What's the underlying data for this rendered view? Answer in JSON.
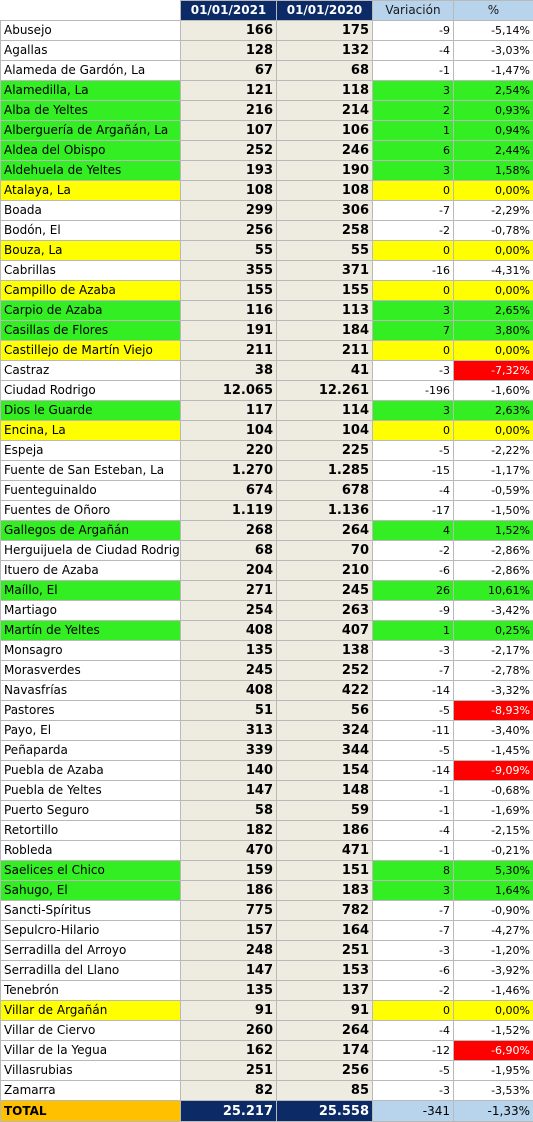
{
  "header": {
    "blank": "",
    "col1": "01/01/2021",
    "col2": "01/01/2020",
    "col3": "Variación",
    "col4": "%"
  },
  "colors": {
    "green": "#33ee22",
    "yellow": "#ffff00",
    "red": "#ff0000",
    "navy": "#0b2a66",
    "orange": "#ffc000",
    "light_blue": "#b8d4ec",
    "beige": "#eeece1"
  },
  "rows": [
    {
      "name": "Abusejo",
      "v2021": "166",
      "v2020": "175",
      "var": "-9",
      "pct": "-5,14%",
      "hl": ""
    },
    {
      "name": "Agallas",
      "v2021": "128",
      "v2020": "132",
      "var": "-4",
      "pct": "-3,03%",
      "hl": ""
    },
    {
      "name": "Alameda de Gardón, La",
      "v2021": "67",
      "v2020": "68",
      "var": "-1",
      "pct": "-1,47%",
      "hl": ""
    },
    {
      "name": "Alamedilla, La",
      "v2021": "121",
      "v2020": "118",
      "var": "3",
      "pct": "2,54%",
      "hl": "green"
    },
    {
      "name": "Alba de Yeltes",
      "v2021": "216",
      "v2020": "214",
      "var": "2",
      "pct": "0,93%",
      "hl": "green"
    },
    {
      "name": "Alberguería de Argañán, La",
      "v2021": "107",
      "v2020": "106",
      "var": "1",
      "pct": "0,94%",
      "hl": "green"
    },
    {
      "name": "Aldea del Obispo",
      "v2021": "252",
      "v2020": "246",
      "var": "6",
      "pct": "2,44%",
      "hl": "green"
    },
    {
      "name": "Aldehuela de Yeltes",
      "v2021": "193",
      "v2020": "190",
      "var": "3",
      "pct": "1,58%",
      "hl": "green"
    },
    {
      "name": "Atalaya, La",
      "v2021": "108",
      "v2020": "108",
      "var": "0",
      "pct": "0,00%",
      "hl": "yellow"
    },
    {
      "name": "Boada",
      "v2021": "299",
      "v2020": "306",
      "var": "-7",
      "pct": "-2,29%",
      "hl": ""
    },
    {
      "name": "Bodón, El",
      "v2021": "256",
      "v2020": "258",
      "var": "-2",
      "pct": "-0,78%",
      "hl": ""
    },
    {
      "name": "Bouza, La",
      "v2021": "55",
      "v2020": "55",
      "var": "0",
      "pct": "0,00%",
      "hl": "yellow"
    },
    {
      "name": "Cabrillas",
      "v2021": "355",
      "v2020": "371",
      "var": "-16",
      "pct": "-4,31%",
      "hl": ""
    },
    {
      "name": "Campillo de Azaba",
      "v2021": "155",
      "v2020": "155",
      "var": "0",
      "pct": "0,00%",
      "hl": "yellow"
    },
    {
      "name": "Carpio de Azaba",
      "v2021": "116",
      "v2020": "113",
      "var": "3",
      "pct": "2,65%",
      "hl": "green"
    },
    {
      "name": "Casillas de Flores",
      "v2021": "191",
      "v2020": "184",
      "var": "7",
      "pct": "3,80%",
      "hl": "green"
    },
    {
      "name": "Castillejo de Martín Viejo",
      "v2021": "211",
      "v2020": "211",
      "var": "0",
      "pct": "0,00%",
      "hl": "yellow"
    },
    {
      "name": "Castraz",
      "v2021": "38",
      "v2020": "41",
      "var": "-3",
      "pct": "-7,32%",
      "hl": "",
      "red": true
    },
    {
      "name": "Ciudad Rodrigo",
      "v2021": "12.065",
      "v2020": "12.261",
      "var": "-196",
      "pct": "-1,60%",
      "hl": ""
    },
    {
      "name": "Dios le Guarde",
      "v2021": "117",
      "v2020": "114",
      "var": "3",
      "pct": "2,63%",
      "hl": "green"
    },
    {
      "name": "Encina, La",
      "v2021": "104",
      "v2020": "104",
      "var": "0",
      "pct": "0,00%",
      "hl": "yellow"
    },
    {
      "name": "Espeja",
      "v2021": "220",
      "v2020": "225",
      "var": "-5",
      "pct": "-2,22%",
      "hl": ""
    },
    {
      "name": "Fuente de San Esteban, La",
      "v2021": "1.270",
      "v2020": "1.285",
      "var": "-15",
      "pct": "-1,17%",
      "hl": ""
    },
    {
      "name": "Fuenteguinaldo",
      "v2021": "674",
      "v2020": "678",
      "var": "-4",
      "pct": "-0,59%",
      "hl": ""
    },
    {
      "name": "Fuentes de Oñoro",
      "v2021": "1.119",
      "v2020": "1.136",
      "var": "-17",
      "pct": "-1,50%",
      "hl": ""
    },
    {
      "name": "Gallegos de Argañán",
      "v2021": "268",
      "v2020": "264",
      "var": "4",
      "pct": "1,52%",
      "hl": "green"
    },
    {
      "name": "Herguijuela de Ciudad Rodrigo",
      "v2021": "68",
      "v2020": "70",
      "var": "-2",
      "pct": "-2,86%",
      "hl": ""
    },
    {
      "name": "Ituero de Azaba",
      "v2021": "204",
      "v2020": "210",
      "var": "-6",
      "pct": "-2,86%",
      "hl": ""
    },
    {
      "name": "Maíllo, El",
      "v2021": "271",
      "v2020": "245",
      "var": "26",
      "pct": "10,61%",
      "hl": "green"
    },
    {
      "name": "Martiago",
      "v2021": "254",
      "v2020": "263",
      "var": "-9",
      "pct": "-3,42%",
      "hl": ""
    },
    {
      "name": "Martín de Yeltes",
      "v2021": "408",
      "v2020": "407",
      "var": "1",
      "pct": "0,25%",
      "hl": "green"
    },
    {
      "name": "Monsagro",
      "v2021": "135",
      "v2020": "138",
      "var": "-3",
      "pct": "-2,17%",
      "hl": ""
    },
    {
      "name": "Morasverdes",
      "v2021": "245",
      "v2020": "252",
      "var": "-7",
      "pct": "-2,78%",
      "hl": ""
    },
    {
      "name": "Navasfrías",
      "v2021": "408",
      "v2020": "422",
      "var": "-14",
      "pct": "-3,32%",
      "hl": ""
    },
    {
      "name": "Pastores",
      "v2021": "51",
      "v2020": "56",
      "var": "-5",
      "pct": "-8,93%",
      "hl": "",
      "red": true
    },
    {
      "name": "Payo, El",
      "v2021": "313",
      "v2020": "324",
      "var": "-11",
      "pct": "-3,40%",
      "hl": ""
    },
    {
      "name": "Peñaparda",
      "v2021": "339",
      "v2020": "344",
      "var": "-5",
      "pct": "-1,45%",
      "hl": ""
    },
    {
      "name": "Puebla de Azaba",
      "v2021": "140",
      "v2020": "154",
      "var": "-14",
      "pct": "-9,09%",
      "hl": "",
      "red": true
    },
    {
      "name": "Puebla de Yeltes",
      "v2021": "147",
      "v2020": "148",
      "var": "-1",
      "pct": "-0,68%",
      "hl": ""
    },
    {
      "name": "Puerto Seguro",
      "v2021": "58",
      "v2020": "59",
      "var": "-1",
      "pct": "-1,69%",
      "hl": ""
    },
    {
      "name": "Retortillo",
      "v2021": "182",
      "v2020": "186",
      "var": "-4",
      "pct": "-2,15%",
      "hl": ""
    },
    {
      "name": "Robleda",
      "v2021": "470",
      "v2020": "471",
      "var": "-1",
      "pct": "-0,21%",
      "hl": ""
    },
    {
      "name": "Saelices el Chico",
      "v2021": "159",
      "v2020": "151",
      "var": "8",
      "pct": "5,30%",
      "hl": "green"
    },
    {
      "name": "Sahugo, El",
      "v2021": "186",
      "v2020": "183",
      "var": "3",
      "pct": "1,64%",
      "hl": "green"
    },
    {
      "name": "Sancti-Spíritus",
      "v2021": "775",
      "v2020": "782",
      "var": "-7",
      "pct": "-0,90%",
      "hl": ""
    },
    {
      "name": "Sepulcro-Hilario",
      "v2021": "157",
      "v2020": "164",
      "var": "-7",
      "pct": "-4,27%",
      "hl": ""
    },
    {
      "name": "Serradilla del Arroyo",
      "v2021": "248",
      "v2020": "251",
      "var": "-3",
      "pct": "-1,20%",
      "hl": ""
    },
    {
      "name": "Serradilla del Llano",
      "v2021": "147",
      "v2020": "153",
      "var": "-6",
      "pct": "-3,92%",
      "hl": ""
    },
    {
      "name": "Tenebrón",
      "v2021": "135",
      "v2020": "137",
      "var": "-2",
      "pct": "-1,46%",
      "hl": ""
    },
    {
      "name": "Villar de Argañán",
      "v2021": "91",
      "v2020": "91",
      "var": "0",
      "pct": "0,00%",
      "hl": "yellow"
    },
    {
      "name": "Villar de Ciervo",
      "v2021": "260",
      "v2020": "264",
      "var": "-4",
      "pct": "-1,52%",
      "hl": ""
    },
    {
      "name": "Villar de la Yegua",
      "v2021": "162",
      "v2020": "174",
      "var": "-12",
      "pct": "-6,90%",
      "hl": "",
      "red": true
    },
    {
      "name": "Villasrubias",
      "v2021": "251",
      "v2020": "256",
      "var": "-5",
      "pct": "-1,95%",
      "hl": ""
    },
    {
      "name": "Zamarra",
      "v2021": "82",
      "v2020": "85",
      "var": "-3",
      "pct": "-3,53%",
      "hl": ""
    }
  ],
  "total": {
    "name": "TOTAL",
    "v2021": "25.217",
    "v2020": "25.558",
    "var": "-341",
    "pct": "-1,33%"
  }
}
